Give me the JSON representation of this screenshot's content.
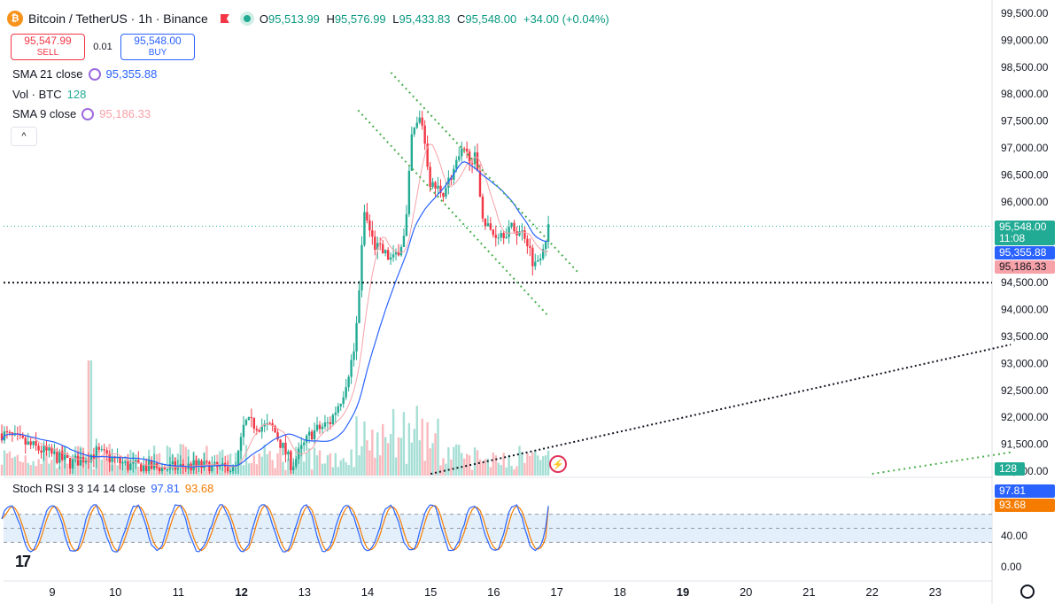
{
  "header": {
    "symbol_title": "Bitcoin / TetherUS · 1h · Binance",
    "coin_glyph": "₿",
    "ohlc": [
      {
        "k": "O",
        "v": "95,513.99"
      },
      {
        "k": "H",
        "v": "95,576.99"
      },
      {
        "k": "L",
        "v": "95,433.83"
      },
      {
        "k": "C",
        "v": "95,548.00"
      }
    ],
    "change": "+34.00 (+0.04%)"
  },
  "trade": {
    "sell_price": "95,547.99",
    "sell_label": "SELL",
    "spread": "0.01",
    "buy_price": "95,548.00",
    "buy_label": "BUY"
  },
  "legends": {
    "sma21_label": "SMA 21 close",
    "sma21_value": "95,355.88",
    "vol_label": "Vol · BTC",
    "vol_value": "128",
    "sma9_label": "SMA 9 close",
    "sma9_value": "95,186.33",
    "collapse_glyph": "^"
  },
  "price_axis": {
    "labels": [
      "99,500.00",
      "99,000.00",
      "98,500.00",
      "98,000.00",
      "97,500.00",
      "97,000.00",
      "96,500.00",
      "96,000.00",
      "94,500.00",
      "94,000.00",
      "93,500.00",
      "93,000.00",
      "92,500.00",
      "92,000.00",
      "91,500.00",
      "91,000.00"
    ],
    "last_price": "95,548.00",
    "countdown": "11:08",
    "sma21_tag": "95,355.88",
    "sma9_tag": "95,186.33",
    "volume_tag": "128"
  },
  "rsi": {
    "label": "Stoch RSI 3 3 14 14 close",
    "k_value": "97.81",
    "d_value": "93.68",
    "axis_labels": [
      "40.00",
      "0.00"
    ],
    "k_tag": "97.81",
    "d_tag": "93.68"
  },
  "time_axis": {
    "labels": [
      "9",
      "10",
      "11",
      "12",
      "13",
      "14",
      "15",
      "16",
      "17",
      "18",
      "19",
      "20",
      "21",
      "22",
      "23"
    ],
    "bold": [
      "12",
      "19"
    ]
  },
  "logo_text": "17",
  "colors": {
    "up": "#22ab94",
    "down": "#f23645",
    "sma21": "#2962ff",
    "sma9": "#f7a1a8",
    "k": "#2962ff",
    "d": "#f57c00",
    "vol_up": "#a6dfd5",
    "vol_down": "#f9b9bd",
    "last_price": "#22ab94",
    "sma21_tag": "#2962ff",
    "sma9_tag": "#f7a1a8"
  },
  "chart_data": {
    "type": "candlestick",
    "timeframe": "1h",
    "ylim": [
      91000,
      99700
    ],
    "x_days": [
      8.2,
      24.2
    ],
    "candles_daily_summary": [
      {
        "day": 9,
        "o": 91600,
        "h": 91900,
        "l": 91000,
        "c": 91150
      },
      {
        "day": 10,
        "o": 91150,
        "h": 92600,
        "l": 91000,
        "c": 91200
      },
      {
        "day": 11,
        "o": 91200,
        "h": 91300,
        "l": 91000,
        "c": 91050
      },
      {
        "day": 12,
        "o": 91050,
        "h": 92100,
        "l": 91000,
        "c": 91900
      },
      {
        "day": 13,
        "o": 91900,
        "h": 93300,
        "l": 91100,
        "c": 93000
      },
      {
        "day": 14,
        "o": 93000,
        "h": 96500,
        "l": 92500,
        "c": 94900
      },
      {
        "day": 15,
        "o": 94900,
        "h": 97900,
        "l": 94600,
        "c": 96700
      },
      {
        "day": 16,
        "o": 96700,
        "h": 97200,
        "l": 94300,
        "c": 95500
      },
      {
        "day": 16.9,
        "o": 95500,
        "h": 95580,
        "l": 94300,
        "c": 95548
      }
    ],
    "horizontal_line": 94500,
    "trend_channel": [
      {
        "x1": 14.37,
        "y1": 98400,
        "x2": 17.33,
        "y2": 94700
      },
      {
        "x1": 13.85,
        "y1": 97700,
        "x2": 16.85,
        "y2": 93900
      }
    ],
    "support_trend": {
      "x1": 15.0,
      "y1": 90950,
      "x2": 24.2,
      "y2": 93350
    },
    "lower_trend": {
      "x1": 22.0,
      "y1": 90950,
      "x2": 24.2,
      "y2": 91350
    }
  }
}
